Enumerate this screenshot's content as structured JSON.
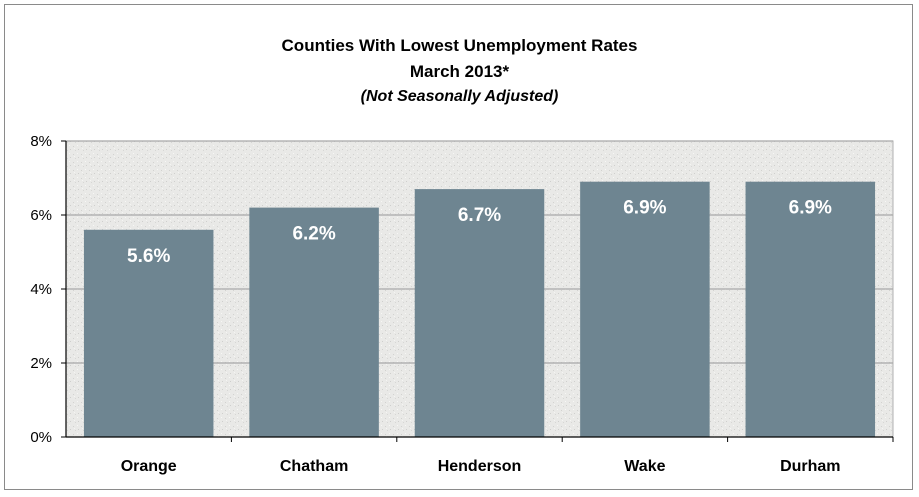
{
  "chart_data": {
    "type": "bar",
    "title": "Counties With Lowest Unemployment Rates",
    "subtitle": "March 2013*",
    "note": "(Not Seasonally Adjusted)",
    "categories": [
      "Orange",
      "Chatham",
      "Henderson",
      "Wake",
      "Durham"
    ],
    "values": [
      5.6,
      6.2,
      6.7,
      6.9,
      6.9
    ],
    "data_labels": [
      "5.6%",
      "6.2%",
      "6.7%",
      "6.9%",
      "6.9%"
    ],
    "y_ticks": [
      0,
      2,
      4,
      6,
      8
    ],
    "y_tick_labels": [
      "0%",
      "2%",
      "4%",
      "6%",
      "8%"
    ],
    "ylim": [
      0,
      8
    ],
    "grid": true,
    "xlabel": "",
    "ylabel": ""
  },
  "colors": {
    "bar": "#6e8591",
    "plot_background": "#e9e9e7",
    "gridline": "#a8a8a8",
    "axis": "#000000",
    "data_label": "#ffffff"
  }
}
